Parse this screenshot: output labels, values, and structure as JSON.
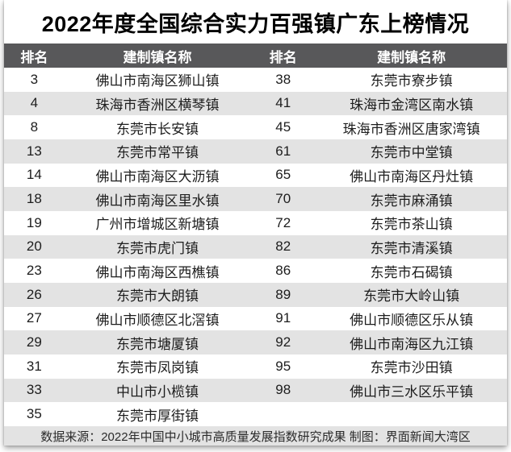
{
  "title": "2022年度全国综合实力百强镇广东上榜情况",
  "colors": {
    "header_bg": "#58585a",
    "alt_row_bg": "#e3e3e3",
    "footer_bg": "#e3e3e3",
    "title_color": "#000000",
    "header_text": "#ffffff",
    "cell_text": "#1d1d1d"
  },
  "chart_data": {
    "type": "table",
    "title": "2022年度全国综合实力百强镇广东上榜情况",
    "columns": [
      "排名",
      "建制镇名称",
      "排名",
      "建制镇名称"
    ],
    "rows": [
      [
        "3",
        "佛山市南海区狮山镇",
        "38",
        "东莞市寮步镇"
      ],
      [
        "4",
        "珠海市香洲区横琴镇",
        "41",
        "珠海市金湾区南水镇"
      ],
      [
        "8",
        "东莞市长安镇",
        "45",
        "珠海市香洲区唐家湾镇"
      ],
      [
        "13",
        "东莞市常平镇",
        "61",
        "东莞市中堂镇"
      ],
      [
        "14",
        "佛山市南海区大沥镇",
        "65",
        "佛山市南海区丹灶镇"
      ],
      [
        "18",
        "佛山市南海区里水镇",
        "70",
        "东莞市麻涌镇"
      ],
      [
        "19",
        "广州市增城区新塘镇",
        "72",
        "东莞市茶山镇"
      ],
      [
        "20",
        "东莞市虎门镇",
        "82",
        "东莞市清溪镇"
      ],
      [
        "23",
        "佛山市南海区西樵镇",
        "86",
        "东莞市石碣镇"
      ],
      [
        "26",
        "东莞市大朗镇",
        "89",
        "东莞市大岭山镇"
      ],
      [
        "27",
        "佛山市顺德区北滘镇",
        "91",
        "佛山市顺德区乐从镇"
      ],
      [
        "29",
        "东莞市塘厦镇",
        "92",
        "佛山市南海区九江镇"
      ],
      [
        "31",
        "东莞市凤岗镇",
        "95",
        "东莞市沙田镇"
      ],
      [
        "33",
        "中山市小榄镇",
        "98",
        "佛山市三水区乐平镇"
      ],
      [
        "35",
        "东莞市厚街镇",
        "",
        ""
      ]
    ],
    "source_note": "数据来源：2022年中国中小城市高质量发展指数研究成果 制图：界面新闻大湾区"
  }
}
